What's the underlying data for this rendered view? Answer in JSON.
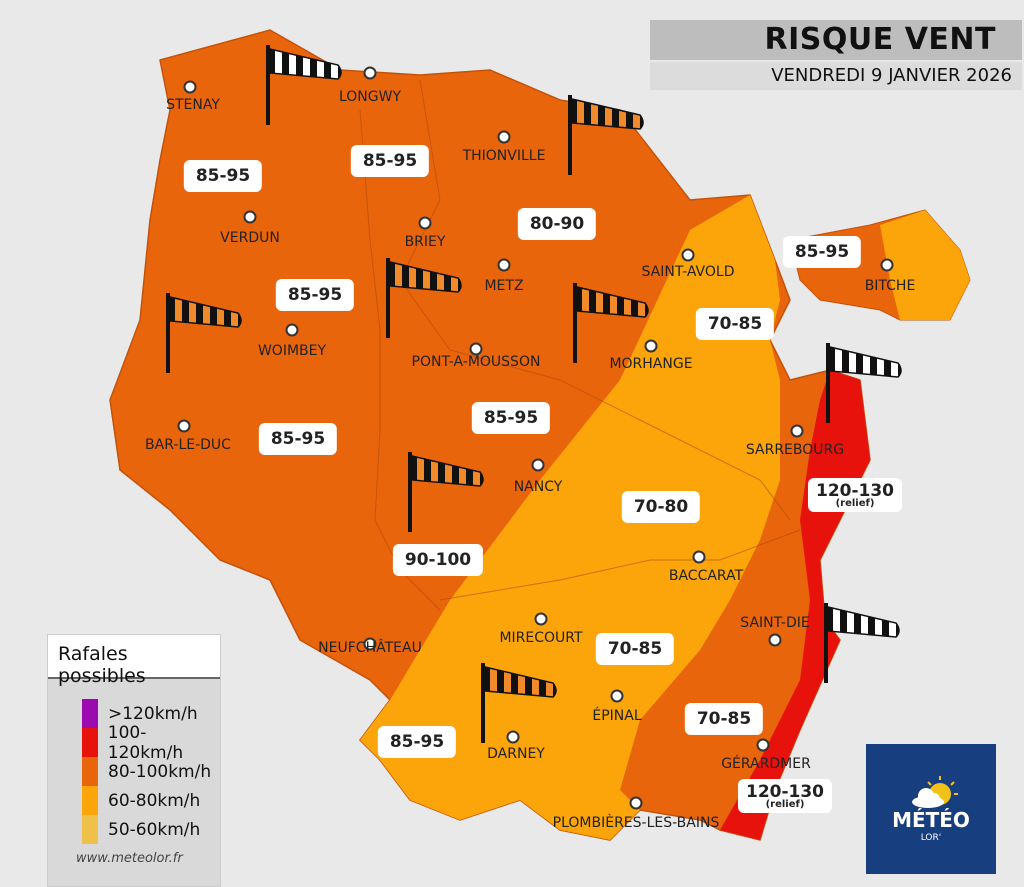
{
  "header": {
    "title": "RISQUE VENT",
    "date": "VENDREDI 9 JANVIER 2026"
  },
  "cities": [
    "STENAY",
    "LONGWY",
    "THIONVILLE",
    "VERDUN",
    "BRIEY",
    "METZ",
    "SAINT-AVOLD",
    "BITCHE",
    "WOIMBEY",
    "PONT-A-MOUSSON",
    "MORHANGE",
    "BAR-LE-DUC",
    "SARREBOURG",
    "NANCY",
    "BACCARAT",
    "NEUFCHÂTEAU",
    "MIRECOURT",
    "SAINT-DIE",
    "ÉPINAL",
    "DARNEY",
    "GÉRARDMER",
    "PLOMBIÈRES-LES-BAINS"
  ],
  "gust_labels": [
    "85-95",
    "85-95",
    "80-90",
    "85-95",
    "85-95",
    "70-85",
    "85-95",
    "85-95",
    "70-80",
    "90-100",
    "70-85",
    "85-95",
    "70-85",
    "120-130",
    "120-130"
  ],
  "relief_note": "(relief)",
  "legend": {
    "title": "Rafales possibles",
    "items": [
      {
        "label": ">120km/h",
        "color": "#9b0bb0"
      },
      {
        "label": "100-120km/h",
        "color": "#e8120c"
      },
      {
        "label": "80-100km/h",
        "color": "#e9650b"
      },
      {
        "label": "60-80km/h",
        "color": "#fba50a"
      },
      {
        "label": "50-60km/h",
        "color": "#efc04a"
      }
    ],
    "website": "www.meteolor.fr"
  },
  "logo": {
    "word": "MÉTÉO",
    "sub": "LOR'"
  },
  "icons": {
    "windsock": "windsock-icon"
  }
}
